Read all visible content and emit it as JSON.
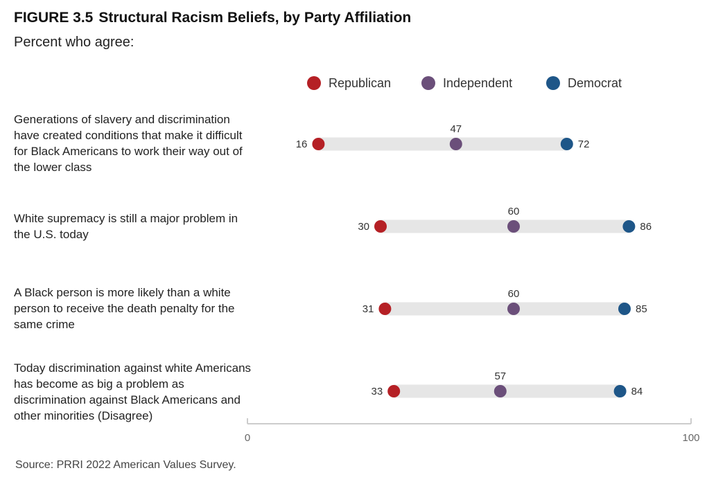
{
  "figure": {
    "number": "FIGURE 3.5",
    "title": "Structural Racism Beliefs, by Party Affiliation",
    "subtitle": "Percent who agree:",
    "source": "Source: PRRI 2022 American Values Survey."
  },
  "colors": {
    "republican": "#b52025",
    "independent": "#6b4f7a",
    "democrat": "#1e5688",
    "track": "#e6e6e6",
    "axis": "#cccccc"
  },
  "chart_data": {
    "type": "dot-range",
    "title": "Structural Racism Beliefs, by Party Affiliation",
    "subtitle": "Percent who agree:",
    "xlim": [
      0,
      100
    ],
    "x_ticks": [
      0,
      100
    ],
    "legend_position": "top",
    "series": [
      {
        "name": "Republican",
        "color": "#b52025"
      },
      {
        "name": "Independent",
        "color": "#6b4f7a"
      },
      {
        "name": "Democrat",
        "color": "#1e5688"
      }
    ],
    "rows": [
      {
        "label": "Generations of slavery and discrimination have created conditions that make it difficult for Black Americans to work their way out of the lower class",
        "values": {
          "Republican": 16,
          "Independent": 47,
          "Democrat": 72
        }
      },
      {
        "label": "White supremacy is still a major problem in the U.S. today",
        "values": {
          "Republican": 30,
          "Independent": 60,
          "Democrat": 86
        }
      },
      {
        "label": "A Black person is more likely than a white person to receive the death penalty for the same crime",
        "values": {
          "Republican": 31,
          "Independent": 60,
          "Democrat": 85
        }
      },
      {
        "label": "Today discrimination against white Americans has become as big a problem as discrimination against Black Americans and other minorities (Disagree)",
        "values": {
          "Republican": 33,
          "Independent": 57,
          "Democrat": 84
        }
      }
    ]
  }
}
